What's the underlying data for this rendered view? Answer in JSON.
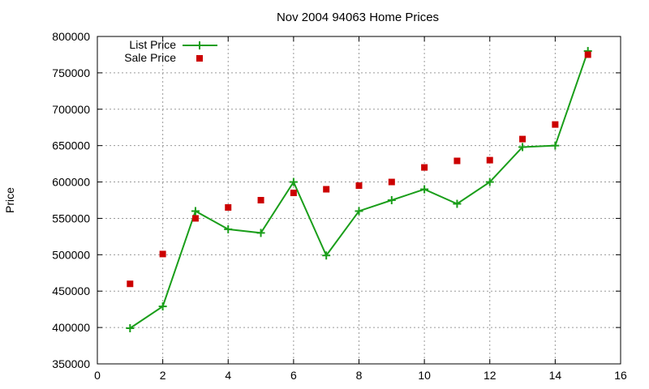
{
  "chart_data": {
    "type": "line",
    "title": "Nov 2004 94063 Home Prices",
    "xlabel": "",
    "ylabel": "Price",
    "xlim": [
      0,
      16
    ],
    "ylim": [
      350000,
      800000
    ],
    "x_ticks": [
      "0",
      "2",
      "4",
      "6",
      "8",
      "10",
      "12",
      "14",
      "16"
    ],
    "y_ticks": [
      "350000",
      "400000",
      "450000",
      "500000",
      "550000",
      "600000",
      "650000",
      "700000",
      "750000",
      "800000"
    ],
    "grid": true,
    "legend_position": "top-left",
    "series": [
      {
        "name": "List Price",
        "style": "linespoints",
        "marker": "plus",
        "color": "#1a9e1a",
        "x": [
          1,
          2,
          3,
          4,
          5,
          6,
          7,
          8,
          9,
          10,
          11,
          12,
          13,
          14,
          15
        ],
        "y": [
          399000,
          429000,
          560000,
          535000,
          530000,
          600000,
          499000,
          560000,
          575000,
          590000,
          570000,
          600000,
          648000,
          650000,
          780000
        ]
      },
      {
        "name": "Sale Price",
        "style": "points",
        "marker": "square",
        "color": "#cc0000",
        "x": [
          1,
          2,
          3,
          4,
          5,
          6,
          7,
          8,
          9,
          10,
          11,
          12,
          13,
          14,
          15
        ],
        "y": [
          460000,
          501000,
          550000,
          565000,
          575000,
          585000,
          590000,
          595000,
          600000,
          620000,
          629000,
          630000,
          659000,
          679000,
          775000
        ]
      }
    ]
  }
}
